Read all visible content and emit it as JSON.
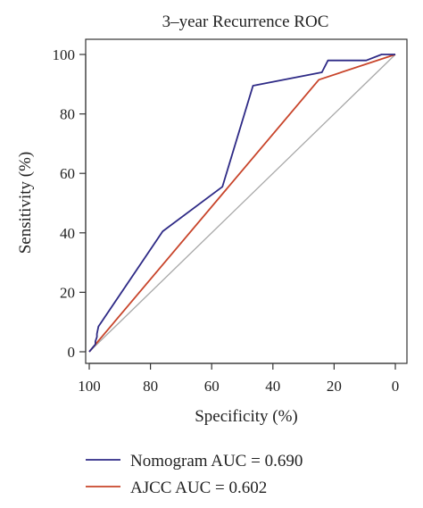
{
  "chart_data": {
    "type": "line",
    "title": "3–year Recurrence ROC",
    "xlabel": "Specificity (%)",
    "ylabel": "Sensitivity (%)",
    "x_reversed": true,
    "xlim": [
      100,
      0
    ],
    "ylim": [
      0,
      100
    ],
    "x_ticks": [
      "100",
      "80",
      "60",
      "40",
      "20",
      "0"
    ],
    "y_ticks": [
      "0",
      "20",
      "40",
      "60",
      "80",
      "100"
    ],
    "grid": false,
    "legend_position": "bottom",
    "series": [
      {
        "name": "Nomogram AUC = 0.690",
        "color": "#2e2a86",
        "x": [
          100,
          98,
          98,
          97.5,
          97.5,
          97,
          76,
          56.5,
          46.5,
          24,
          22,
          9.5,
          4.5,
          0
        ],
        "y": [
          0,
          2.5,
          3.5,
          5,
          6,
          8.5,
          40.5,
          55.5,
          89.5,
          94,
          98,
          98,
          100,
          100
        ]
      },
      {
        "name": "AJCC AUC = 0.602",
        "color": "#c8442a",
        "x": [
          100,
          25,
          0
        ],
        "y": [
          0,
          91.5,
          100
        ]
      },
      {
        "name": "",
        "color": "#a8a8a8",
        "x": [
          100,
          0
        ],
        "y": [
          0,
          100
        ]
      }
    ]
  }
}
